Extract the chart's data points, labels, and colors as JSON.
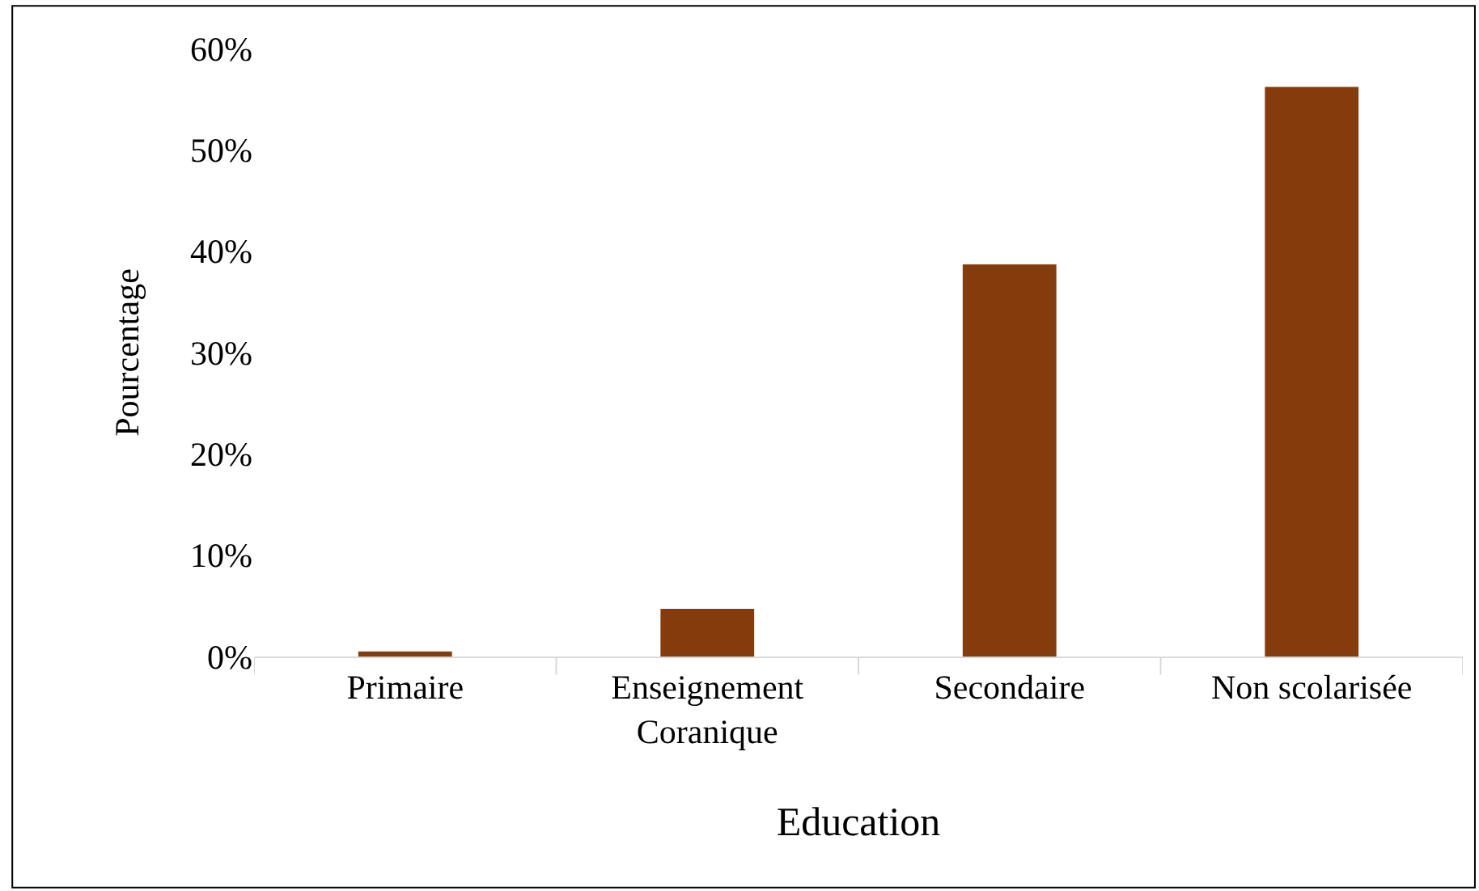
{
  "chart_data": {
    "type": "bar",
    "xlabel": "Education",
    "ylabel": "Pourcentage",
    "categories": [
      "Primaire",
      "Enseignement\nCoranique",
      "Secondaire",
      "Non scolarisée"
    ],
    "values": [
      0.5,
      4.7,
      38.7,
      56.2
    ],
    "color": "#843c0c",
    "ylim": [
      0,
      60
    ],
    "yticks": [
      {
        "value": 0,
        "label": "0%"
      },
      {
        "value": 10,
        "label": "10%"
      },
      {
        "value": 20,
        "label": "20%"
      },
      {
        "value": 30,
        "label": "30%"
      },
      {
        "value": 40,
        "label": "40%"
      },
      {
        "value": 50,
        "label": "50%"
      },
      {
        "value": 60,
        "label": "60%"
      }
    ],
    "legend": false
  }
}
